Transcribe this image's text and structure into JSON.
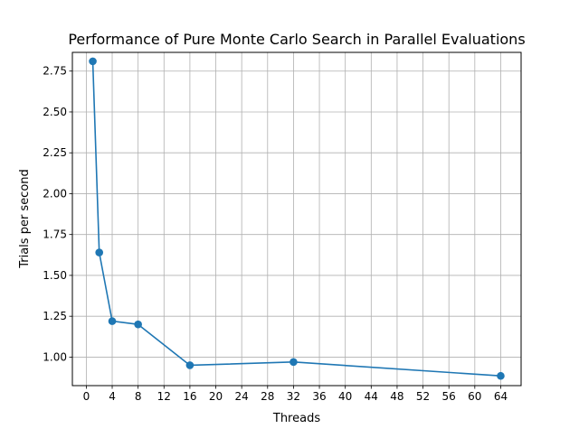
{
  "chart_data": {
    "type": "line",
    "title": "Performance of Pure Monte Carlo Search in Parallel Evaluations",
    "xlabel": "Threads",
    "ylabel": "Trials per second",
    "xlim": [
      -2.15,
      67.15
    ],
    "ylim": [
      0.8255,
      2.8645
    ],
    "xticks": [
      0,
      4,
      8,
      12,
      16,
      20,
      24,
      28,
      32,
      36,
      40,
      44,
      48,
      52,
      56,
      60,
      64
    ],
    "yticks": [
      1.0,
      1.25,
      1.5,
      1.75,
      2.0,
      2.25,
      2.5,
      2.75
    ],
    "ytick_labels": [
      "1.00",
      "1.25",
      "1.50",
      "1.75",
      "2.00",
      "2.25",
      "2.50",
      "2.75"
    ],
    "grid": true,
    "series": [
      {
        "color": "#1f77b4",
        "marker": "circle",
        "x": [
          1,
          2,
          4,
          8,
          16,
          32,
          64
        ],
        "y": [
          2.81,
          1.64,
          1.22,
          1.2,
          0.95,
          0.97,
          0.885
        ]
      }
    ]
  }
}
